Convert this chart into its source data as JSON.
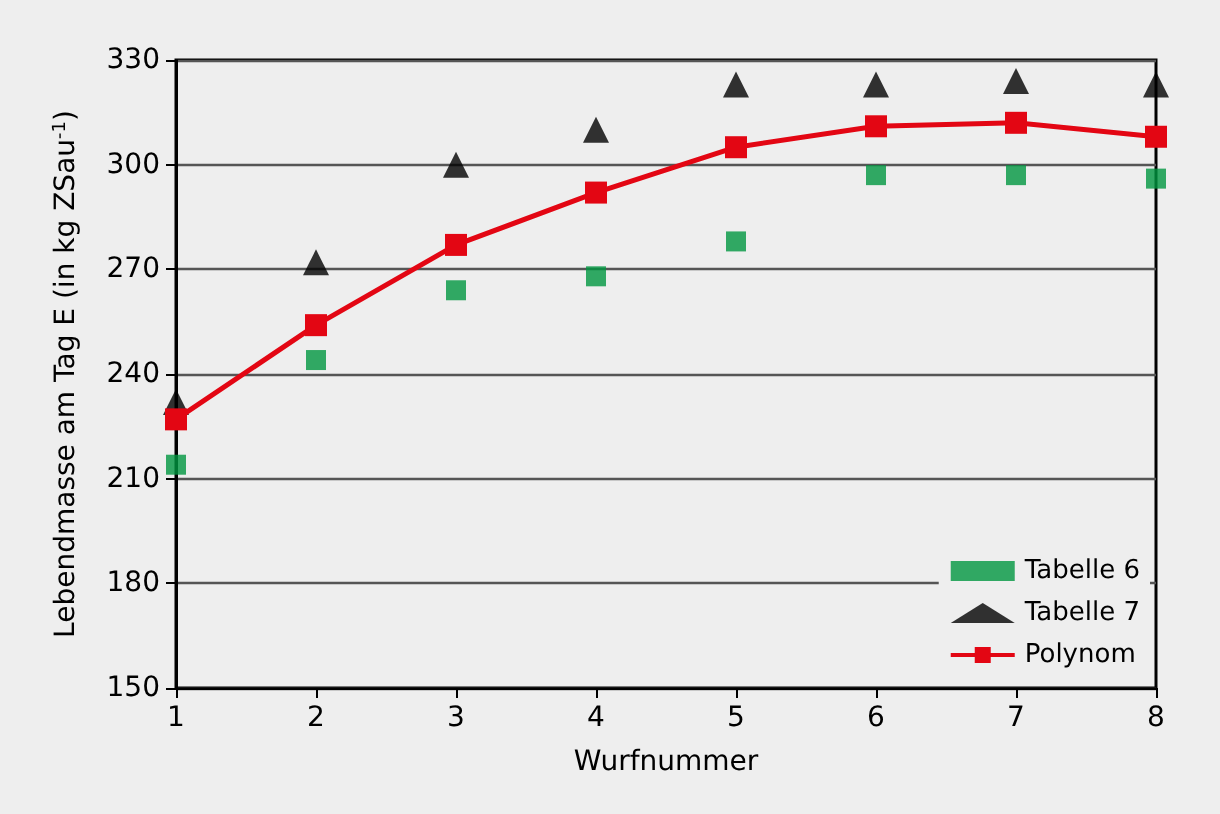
{
  "chart_data": {
    "type": "scatter",
    "xlabel": "Wurfnummer",
    "ylabel": "Lebendmasse am Tag E (in kg ZSau$^{-1}$)",
    "x": [
      1,
      2,
      3,
      4,
      5,
      6,
      7,
      8
    ],
    "xlim": [
      1,
      8
    ],
    "xticks": [
      1,
      2,
      3,
      4,
      5,
      6,
      7,
      8
    ],
    "ylim": [
      150,
      330
    ],
    "yticks": [
      150,
      180,
      210,
      240,
      270,
      300,
      330
    ],
    "grid": "y",
    "legend": "bottom right",
    "series": [
      {
        "name": "Tabelle 6",
        "color": "#009640",
        "marker": "square",
        "values": [
          214,
          244,
          264,
          268,
          278,
          297,
          297,
          296
        ]
      },
      {
        "name": "Tabelle 7",
        "color": "#000000",
        "marker": "triangle",
        "values": [
          232,
          272,
          300,
          310,
          323,
          323,
          324,
          323
        ]
      },
      {
        "name": "Polynom",
        "type": "line",
        "color": "#e30613",
        "marker": "square",
        "values": [
          227,
          254,
          277,
          292,
          305,
          311,
          312,
          308
        ]
      }
    ]
  }
}
